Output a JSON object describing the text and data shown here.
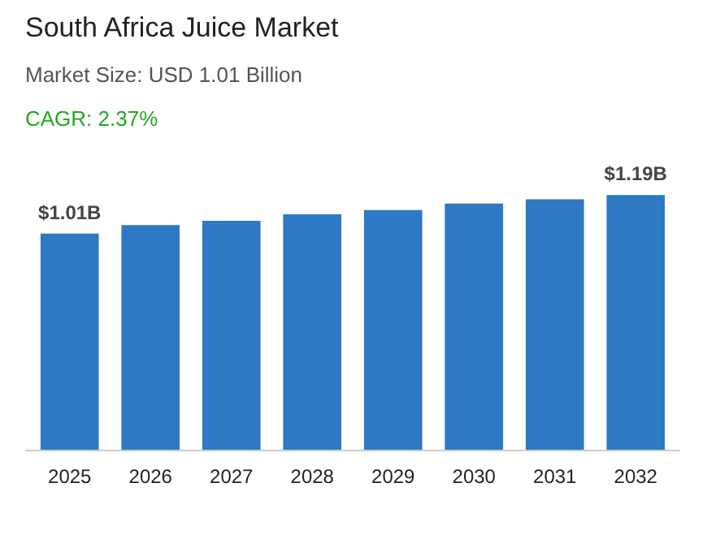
{
  "chart_data": {
    "type": "bar",
    "title": "South Africa Juice Market",
    "subtitle": "Market Size: USD 1.01 Billion",
    "annotations": [
      "CAGR: 2.37%"
    ],
    "categories": [
      "2025",
      "2026",
      "2027",
      "2028",
      "2029",
      "2030",
      "2031",
      "2032"
    ],
    "values": [
      1.01,
      1.05,
      1.07,
      1.1,
      1.12,
      1.15,
      1.17,
      1.19
    ],
    "value_labels": [
      "$1.01B",
      null,
      null,
      null,
      null,
      null,
      null,
      "$1.19B"
    ],
    "color": "#2e78c4",
    "grid": false
  }
}
